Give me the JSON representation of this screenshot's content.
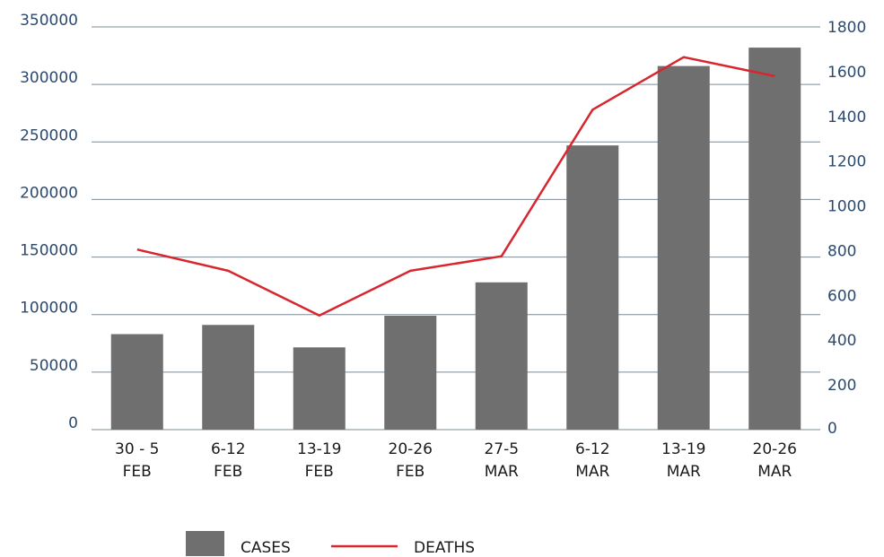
{
  "chart_data": {
    "type": "bar",
    "categories": [
      [
        "30 - 5",
        "FEB"
      ],
      [
        "6-12",
        "FEB"
      ],
      [
        "13-19",
        "FEB"
      ],
      [
        "20-26",
        "FEB"
      ],
      [
        "27-5",
        "MAR"
      ],
      [
        "6-12",
        "MAR"
      ],
      [
        "13-19",
        "MAR"
      ],
      [
        "20-26",
        "MAR"
      ]
    ],
    "series": [
      {
        "name": "CASES",
        "type": "bar",
        "axis": "left",
        "color": "#6f6f6f",
        "values": [
          83000,
          91000,
          71500,
          99000,
          128000,
          247000,
          316000,
          332000
        ]
      },
      {
        "name": "DEATHS",
        "type": "line",
        "axis": "right",
        "color": "#d7262e",
        "values": [
          805,
          710,
          510,
          710,
          775,
          1430,
          1665,
          1580
        ]
      }
    ],
    "left_axis": {
      "min": 0,
      "max": 350000,
      "ticks": [
        "0",
        "50000",
        "100000",
        "150000",
        "200000",
        "250000",
        "300000",
        "350000"
      ]
    },
    "right_axis": {
      "min": 0,
      "max": 1800,
      "ticks": [
        "0",
        "200",
        "400",
        "600",
        "800",
        "1000",
        "1200",
        "1400",
        "1600",
        "1800"
      ]
    },
    "grid": true,
    "legend_position": "bottom-center",
    "title": "",
    "xlabel": "",
    "ylabel": ""
  }
}
